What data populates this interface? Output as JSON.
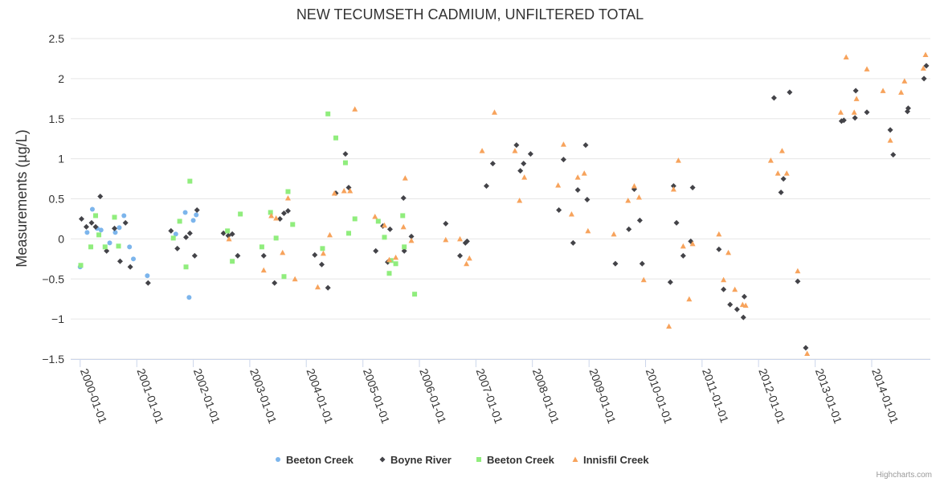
{
  "chart_data": {
    "type": "scatter",
    "title": "NEW TECUMSETH CADMIUM, UNFILTERED TOTAL",
    "ylabel": "Measurements (µg/L)",
    "xlabel": "",
    "ylim": [
      -1.5,
      2.5
    ],
    "xlim": [
      "1999-11-01",
      "2015-01-15"
    ],
    "y_ticks": [
      {
        "value": -1.5,
        "label": "−1.5"
      },
      {
        "value": -1,
        "label": "−1"
      },
      {
        "value": -0.5,
        "label": "−0.5"
      },
      {
        "value": 0,
        "label": "0"
      },
      {
        "value": 0.5,
        "label": "0.5"
      },
      {
        "value": 1,
        "label": "1"
      },
      {
        "value": 1.5,
        "label": "1.5"
      },
      {
        "value": 2,
        "label": "2"
      },
      {
        "value": 2.5,
        "label": "2.5"
      }
    ],
    "x_ticks": [
      "2000-01-01",
      "2001-01-01",
      "2002-01-01",
      "2003-01-01",
      "2004-01-01",
      "2005-01-01",
      "2006-01-01",
      "2007-01-01",
      "2008-01-01",
      "2009-01-01",
      "2010-01-01",
      "2011-01-01",
      "2012-01-01",
      "2013-01-01",
      "2014-01-01"
    ],
    "grid": true,
    "legend_position": "bottom-center",
    "credits": "Highcharts.com",
    "series": [
      {
        "name": "Beeton Creek",
        "marker": "circle",
        "color": "#7cb5ec",
        "points": [
          [
            "2000-01-01",
            -0.35
          ],
          [
            "2000-02-15",
            0.08
          ],
          [
            "2000-03-20",
            0.37
          ],
          [
            "2000-04-20",
            0.13
          ],
          [
            "2000-05-15",
            0.11
          ],
          [
            "2000-07-10",
            -0.05
          ],
          [
            "2000-08-15",
            0.08
          ],
          [
            "2000-09-10",
            0.14
          ],
          [
            "2000-10-10",
            0.29
          ],
          [
            "2000-11-15",
            -0.1
          ],
          [
            "2000-12-10",
            -0.25
          ],
          [
            "2001-03-10",
            -0.46
          ],
          [
            "2001-09-10",
            0.06
          ],
          [
            "2001-11-10",
            0.33
          ],
          [
            "2001-12-05",
            -0.73
          ],
          [
            "2002-01-01",
            0.23
          ],
          [
            "2002-01-20",
            0.3
          ]
        ]
      },
      {
        "name": "Boyne River",
        "marker": "diamond",
        "color": "#434348",
        "points": [
          [
            "2000-01-10",
            0.25
          ],
          [
            "2000-02-10",
            0.15
          ],
          [
            "2000-03-15",
            0.2
          ],
          [
            "2000-04-10",
            0.15
          ],
          [
            "2000-05-10",
            0.53
          ],
          [
            "2000-06-20",
            -0.15
          ],
          [
            "2000-08-10",
            0.13
          ],
          [
            "2000-09-15",
            -0.28
          ],
          [
            "2000-10-20",
            0.2
          ],
          [
            "2000-11-20",
            -0.35
          ],
          [
            "2001-03-15",
            -0.55
          ],
          [
            "2001-08-10",
            0.1
          ],
          [
            "2001-09-20",
            -0.12
          ],
          [
            "2001-11-15",
            0.02
          ],
          [
            "2001-12-10",
            0.07
          ],
          [
            "2002-01-10",
            -0.21
          ],
          [
            "2002-01-25",
            0.36
          ],
          [
            "2002-07-15",
            0.07
          ],
          [
            "2002-08-15",
            0.04
          ],
          [
            "2002-09-10",
            0.06
          ],
          [
            "2002-10-15",
            -0.21
          ],
          [
            "2003-04-01",
            -0.21
          ],
          [
            "2003-06-10",
            -0.55
          ],
          [
            "2003-07-15",
            0.25
          ],
          [
            "2003-08-10",
            0.32
          ],
          [
            "2003-09-05",
            0.35
          ],
          [
            "2004-02-25",
            -0.2
          ],
          [
            "2004-04-10",
            -0.32
          ],
          [
            "2004-05-20",
            -0.61
          ],
          [
            "2004-07-10",
            0.57
          ],
          [
            "2004-09-10",
            1.06
          ],
          [
            "2004-10-01",
            0.64
          ],
          [
            "2005-03-25",
            -0.15
          ],
          [
            "2005-05-10",
            0.16
          ],
          [
            "2005-06-10",
            -0.29
          ],
          [
            "2005-06-25",
            0.12
          ],
          [
            "2005-09-20",
            0.51
          ],
          [
            "2005-09-25",
            -0.15
          ],
          [
            "2005-11-10",
            0.03
          ],
          [
            "2006-06-20",
            0.19
          ],
          [
            "2006-09-20",
            -0.21
          ],
          [
            "2006-10-25",
            -0.05
          ],
          [
            "2006-11-05",
            -0.03
          ],
          [
            "2007-03-10",
            0.66
          ],
          [
            "2007-04-20",
            0.94
          ],
          [
            "2007-09-20",
            1.17
          ],
          [
            "2007-10-15",
            0.85
          ],
          [
            "2007-11-05",
            0.94
          ],
          [
            "2007-12-20",
            1.06
          ],
          [
            "2008-06-20",
            0.36
          ],
          [
            "2008-07-20",
            0.99
          ],
          [
            "2008-09-20",
            -0.05
          ],
          [
            "2008-10-20",
            0.61
          ],
          [
            "2008-12-10",
            1.17
          ],
          [
            "2008-12-20",
            0.49
          ],
          [
            "2009-06-20",
            -0.31
          ],
          [
            "2009-09-15",
            0.12
          ],
          [
            "2009-10-20",
            0.62
          ],
          [
            "2009-11-25",
            0.23
          ],
          [
            "2009-12-10",
            -0.31
          ],
          [
            "2010-06-10",
            -0.54
          ],
          [
            "2010-07-01",
            0.66
          ],
          [
            "2010-07-20",
            0.2
          ],
          [
            "2010-09-01",
            -0.21
          ],
          [
            "2010-10-20",
            -0.03
          ],
          [
            "2010-11-01",
            0.64
          ],
          [
            "2011-04-20",
            -0.13
          ],
          [
            "2011-05-20",
            -0.63
          ],
          [
            "2011-07-01",
            -0.82
          ],
          [
            "2011-08-15",
            -0.88
          ],
          [
            "2011-09-25",
            -0.98
          ],
          [
            "2011-10-01",
            -0.72
          ],
          [
            "2012-04-10",
            1.76
          ],
          [
            "2012-05-25",
            0.58
          ],
          [
            "2012-06-10",
            0.75
          ],
          [
            "2012-07-20",
            1.83
          ],
          [
            "2012-09-10",
            -0.53
          ],
          [
            "2012-11-01",
            -1.36
          ],
          [
            "2013-06-20",
            1.47
          ],
          [
            "2013-07-05",
            1.48
          ],
          [
            "2013-09-15",
            1.51
          ],
          [
            "2013-09-20",
            1.85
          ],
          [
            "2013-12-01",
            1.58
          ],
          [
            "2014-05-01",
            1.36
          ],
          [
            "2014-05-20",
            1.05
          ],
          [
            "2014-08-20",
            1.59
          ],
          [
            "2014-08-25",
            1.63
          ],
          [
            "2014-12-05",
            2.0
          ],
          [
            "2014-12-20",
            2.16
          ]
        ]
      },
      {
        "name": "Beeton Creek",
        "marker": "square",
        "color": "#90ed7d",
        "points": [
          [
            "2000-01-05",
            -0.33
          ],
          [
            "2000-03-10",
            -0.1
          ],
          [
            "2000-04-10",
            0.29
          ],
          [
            "2000-05-01",
            0.05
          ],
          [
            "2000-06-10",
            -0.1
          ],
          [
            "2000-08-10",
            0.27
          ],
          [
            "2000-09-05",
            -0.09
          ],
          [
            "2001-08-25",
            0.01
          ],
          [
            "2001-10-05",
            0.22
          ],
          [
            "2001-11-15",
            -0.35
          ],
          [
            "2001-12-10",
            0.72
          ],
          [
            "2002-08-10",
            0.1
          ],
          [
            "2002-09-10",
            -0.28
          ],
          [
            "2002-11-01",
            0.31
          ],
          [
            "2003-03-20",
            -0.1
          ],
          [
            "2003-05-15",
            0.33
          ],
          [
            "2003-06-20",
            0.01
          ],
          [
            "2003-08-10",
            -0.47
          ],
          [
            "2003-09-05",
            0.59
          ],
          [
            "2003-10-05",
            0.18
          ],
          [
            "2004-04-15",
            -0.12
          ],
          [
            "2004-05-20",
            1.56
          ],
          [
            "2004-07-10",
            1.26
          ],
          [
            "2004-09-10",
            0.95
          ],
          [
            "2004-10-01",
            0.07
          ],
          [
            "2004-11-10",
            0.25
          ],
          [
            "2005-04-10",
            0.22
          ],
          [
            "2005-05-20",
            0.02
          ],
          [
            "2005-06-20",
            -0.43
          ],
          [
            "2005-07-01",
            -0.27
          ],
          [
            "2005-08-01",
            -0.31
          ],
          [
            "2005-09-15",
            0.29
          ],
          [
            "2005-09-25",
            -0.1
          ],
          [
            "2005-12-01",
            -0.69
          ]
        ]
      },
      {
        "name": "Innisfil Creek",
        "marker": "triangle",
        "color": "#f7a35c",
        "points": [
          [
            "2002-08-20",
            0.0
          ],
          [
            "2003-04-01",
            -0.39
          ],
          [
            "2003-05-20",
            0.29
          ],
          [
            "2003-06-20",
            0.26
          ],
          [
            "2003-08-01",
            -0.17
          ],
          [
            "2003-09-05",
            0.51
          ],
          [
            "2003-10-20",
            -0.5
          ],
          [
            "2004-03-15",
            -0.6
          ],
          [
            "2004-04-20",
            -0.18
          ],
          [
            "2004-06-01",
            0.05
          ],
          [
            "2004-07-01",
            0.57
          ],
          [
            "2004-09-01",
            0.6
          ],
          [
            "2004-10-10",
            0.6
          ],
          [
            "2004-11-10",
            1.62
          ],
          [
            "2005-03-20",
            0.28
          ],
          [
            "2005-05-20",
            0.17
          ],
          [
            "2005-06-20",
            -0.26
          ],
          [
            "2005-08-01",
            -0.23
          ],
          [
            "2005-09-20",
            0.15
          ],
          [
            "2005-10-01",
            0.76
          ],
          [
            "2005-11-10",
            -0.02
          ],
          [
            "2006-06-20",
            -0.01
          ],
          [
            "2006-09-20",
            0.0
          ],
          [
            "2006-11-01",
            -0.31
          ],
          [
            "2006-11-20",
            -0.24
          ],
          [
            "2007-02-10",
            1.1
          ],
          [
            "2007-05-01",
            1.58
          ],
          [
            "2007-09-10",
            1.1
          ],
          [
            "2007-10-10",
            0.48
          ],
          [
            "2007-11-10",
            0.77
          ],
          [
            "2008-06-15",
            0.67
          ],
          [
            "2008-07-20",
            1.18
          ],
          [
            "2008-09-10",
            0.31
          ],
          [
            "2008-10-20",
            0.77
          ],
          [
            "2008-12-01",
            0.82
          ],
          [
            "2008-12-25",
            0.1
          ],
          [
            "2009-06-10",
            0.06
          ],
          [
            "2009-09-10",
            0.48
          ],
          [
            "2009-10-20",
            0.66
          ],
          [
            "2009-11-20",
            0.52
          ],
          [
            "2009-12-20",
            -0.51
          ],
          [
            "2010-06-01",
            -1.09
          ],
          [
            "2010-07-01",
            0.62
          ],
          [
            "2010-08-01",
            0.98
          ],
          [
            "2010-09-01",
            -0.09
          ],
          [
            "2010-10-10",
            -0.75
          ],
          [
            "2010-11-01",
            -0.06
          ],
          [
            "2011-04-20",
            0.06
          ],
          [
            "2011-05-20",
            -0.51
          ],
          [
            "2011-06-20",
            -0.17
          ],
          [
            "2011-08-01",
            -0.63
          ],
          [
            "2011-09-20",
            -0.82
          ],
          [
            "2011-10-10",
            -0.83
          ],
          [
            "2012-03-20",
            0.98
          ],
          [
            "2012-05-05",
            0.82
          ],
          [
            "2012-06-01",
            1.1
          ],
          [
            "2012-07-01",
            0.82
          ],
          [
            "2012-09-10",
            -0.4
          ],
          [
            "2012-11-10",
            -1.43
          ],
          [
            "2013-06-15",
            1.58
          ],
          [
            "2013-07-20",
            2.27
          ],
          [
            "2013-09-10",
            1.58
          ],
          [
            "2013-09-25",
            1.75
          ],
          [
            "2013-12-01",
            2.12
          ],
          [
            "2014-03-15",
            1.85
          ],
          [
            "2014-05-01",
            1.23
          ],
          [
            "2014-07-10",
            1.83
          ],
          [
            "2014-08-01",
            1.97
          ],
          [
            "2014-12-01",
            2.13
          ],
          [
            "2014-12-15",
            2.3
          ]
        ]
      }
    ]
  }
}
